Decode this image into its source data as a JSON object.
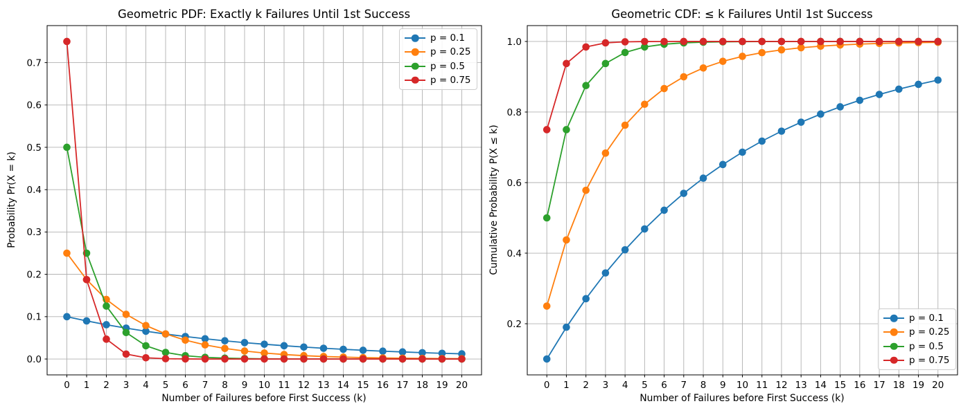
{
  "style": {
    "background": "#ffffff",
    "grid_color": "#b0b0b0",
    "spine_color": "#000000",
    "text_color": "#000000",
    "legend_border_color": "#cccccc",
    "series_colors": {
      "blue": "#1f77b4",
      "orange": "#ff7f0e",
      "green": "#2ca02c",
      "red": "#d62728"
    }
  },
  "chart_data": [
    {
      "type": "line",
      "title": "Geometric PDF: Exactly k Failures Until 1st Success",
      "xlabel": "Number of Failures before First Success (k)",
      "ylabel": "Probability Pr(X = k)",
      "grid": true,
      "legend_position": "upper right",
      "marker": "o",
      "xlim": [
        -1,
        21
      ],
      "ylim": [
        -0.0375,
        0.7875
      ],
      "x": [
        0,
        1,
        2,
        3,
        4,
        5,
        6,
        7,
        8,
        9,
        10,
        11,
        12,
        13,
        14,
        15,
        16,
        17,
        18,
        19,
        20
      ],
      "xticks": [
        0,
        1,
        2,
        3,
        4,
        5,
        6,
        7,
        8,
        9,
        10,
        11,
        12,
        13,
        14,
        15,
        16,
        17,
        18,
        19,
        20
      ],
      "ytick_values": [
        0.0,
        0.1,
        0.2,
        0.3,
        0.4,
        0.5,
        0.6,
        0.7
      ],
      "ytick_labels": [
        "0.0",
        "0.1",
        "0.2",
        "0.3",
        "0.4",
        "0.5",
        "0.6",
        "0.7"
      ],
      "series": [
        {
          "name": "p = 0.1",
          "color": "#1f77b4",
          "values": [
            0.1,
            0.09,
            0.081,
            0.0729,
            0.0656,
            0.059,
            0.0531,
            0.0478,
            0.043,
            0.0387,
            0.0349,
            0.0314,
            0.0282,
            0.0254,
            0.0229,
            0.0206,
            0.0185,
            0.0167,
            0.015,
            0.0135,
            0.0122
          ]
        },
        {
          "name": "p = 0.25",
          "color": "#ff7f0e",
          "values": [
            0.25,
            0.1875,
            0.1406,
            0.1055,
            0.0791,
            0.0593,
            0.0445,
            0.0334,
            0.025,
            0.0188,
            0.0141,
            0.0106,
            0.0079,
            0.0059,
            0.0045,
            0.0033,
            0.0025,
            0.0019,
            0.0014,
            0.0011,
            0.0008
          ]
        },
        {
          "name": "p = 0.5",
          "color": "#2ca02c",
          "values": [
            0.5,
            0.25,
            0.125,
            0.0625,
            0.0313,
            0.0156,
            0.0078,
            0.0039,
            0.002,
            0.001,
            0.0005,
            0.0002,
            0.0001,
            0.0001,
            0.0,
            0.0,
            0.0,
            0.0,
            0.0,
            0.0,
            0.0
          ]
        },
        {
          "name": "p = 0.75",
          "color": "#d62728",
          "values": [
            0.75,
            0.1875,
            0.0469,
            0.0117,
            0.0029,
            0.0007,
            0.0002,
            0.0,
            0.0,
            0.0,
            0.0,
            0.0,
            0.0,
            0.0,
            0.0,
            0.0,
            0.0,
            0.0,
            0.0,
            0.0,
            0.0
          ]
        }
      ]
    },
    {
      "type": "line",
      "title": "Geometric CDF: ≤ k Failures Until 1st Success",
      "xlabel": "Number of Failures before First Success (k)",
      "ylabel": "Cumulative Probability P(X ≤ k)",
      "grid": true,
      "legend_position": "lower right",
      "marker": "o",
      "xlim": [
        -1,
        21
      ],
      "ylim": [
        0.055,
        1.045
      ],
      "x": [
        0,
        1,
        2,
        3,
        4,
        5,
        6,
        7,
        8,
        9,
        10,
        11,
        12,
        13,
        14,
        15,
        16,
        17,
        18,
        19,
        20
      ],
      "xticks": [
        0,
        1,
        2,
        3,
        4,
        5,
        6,
        7,
        8,
        9,
        10,
        11,
        12,
        13,
        14,
        15,
        16,
        17,
        18,
        19,
        20
      ],
      "ytick_values": [
        0.2,
        0.4,
        0.6,
        0.8,
        1.0
      ],
      "ytick_labels": [
        "0.2",
        "0.4",
        "0.6",
        "0.8",
        "1.0"
      ],
      "series": [
        {
          "name": "p = 0.1",
          "color": "#1f77b4",
          "values": [
            0.1,
            0.19,
            0.271,
            0.3439,
            0.4095,
            0.4686,
            0.5217,
            0.5695,
            0.6126,
            0.6513,
            0.6862,
            0.7176,
            0.7458,
            0.7712,
            0.7941,
            0.8147,
            0.8332,
            0.8499,
            0.8649,
            0.8784,
            0.8906
          ]
        },
        {
          "name": "p = 0.25",
          "color": "#ff7f0e",
          "values": [
            0.25,
            0.4375,
            0.5781,
            0.6836,
            0.7627,
            0.822,
            0.8665,
            0.8999,
            0.9249,
            0.9437,
            0.9578,
            0.9683,
            0.9762,
            0.9822,
            0.9866,
            0.99,
            0.9925,
            0.9944,
            0.9958,
            0.9968,
            0.9976
          ]
        },
        {
          "name": "p = 0.5",
          "color": "#2ca02c",
          "values": [
            0.5,
            0.75,
            0.875,
            0.9375,
            0.9688,
            0.9844,
            0.9922,
            0.9961,
            0.998,
            0.999,
            0.9995,
            0.9998,
            0.9999,
            0.9999,
            1.0,
            1.0,
            1.0,
            1.0,
            1.0,
            1.0,
            1.0
          ]
        },
        {
          "name": "p = 0.75",
          "color": "#d62728",
          "values": [
            0.75,
            0.9375,
            0.9844,
            0.9961,
            0.999,
            0.9998,
            0.9999,
            1.0,
            1.0,
            1.0,
            1.0,
            1.0,
            1.0,
            1.0,
            1.0,
            1.0,
            1.0,
            1.0,
            1.0,
            1.0,
            1.0
          ]
        }
      ]
    }
  ]
}
